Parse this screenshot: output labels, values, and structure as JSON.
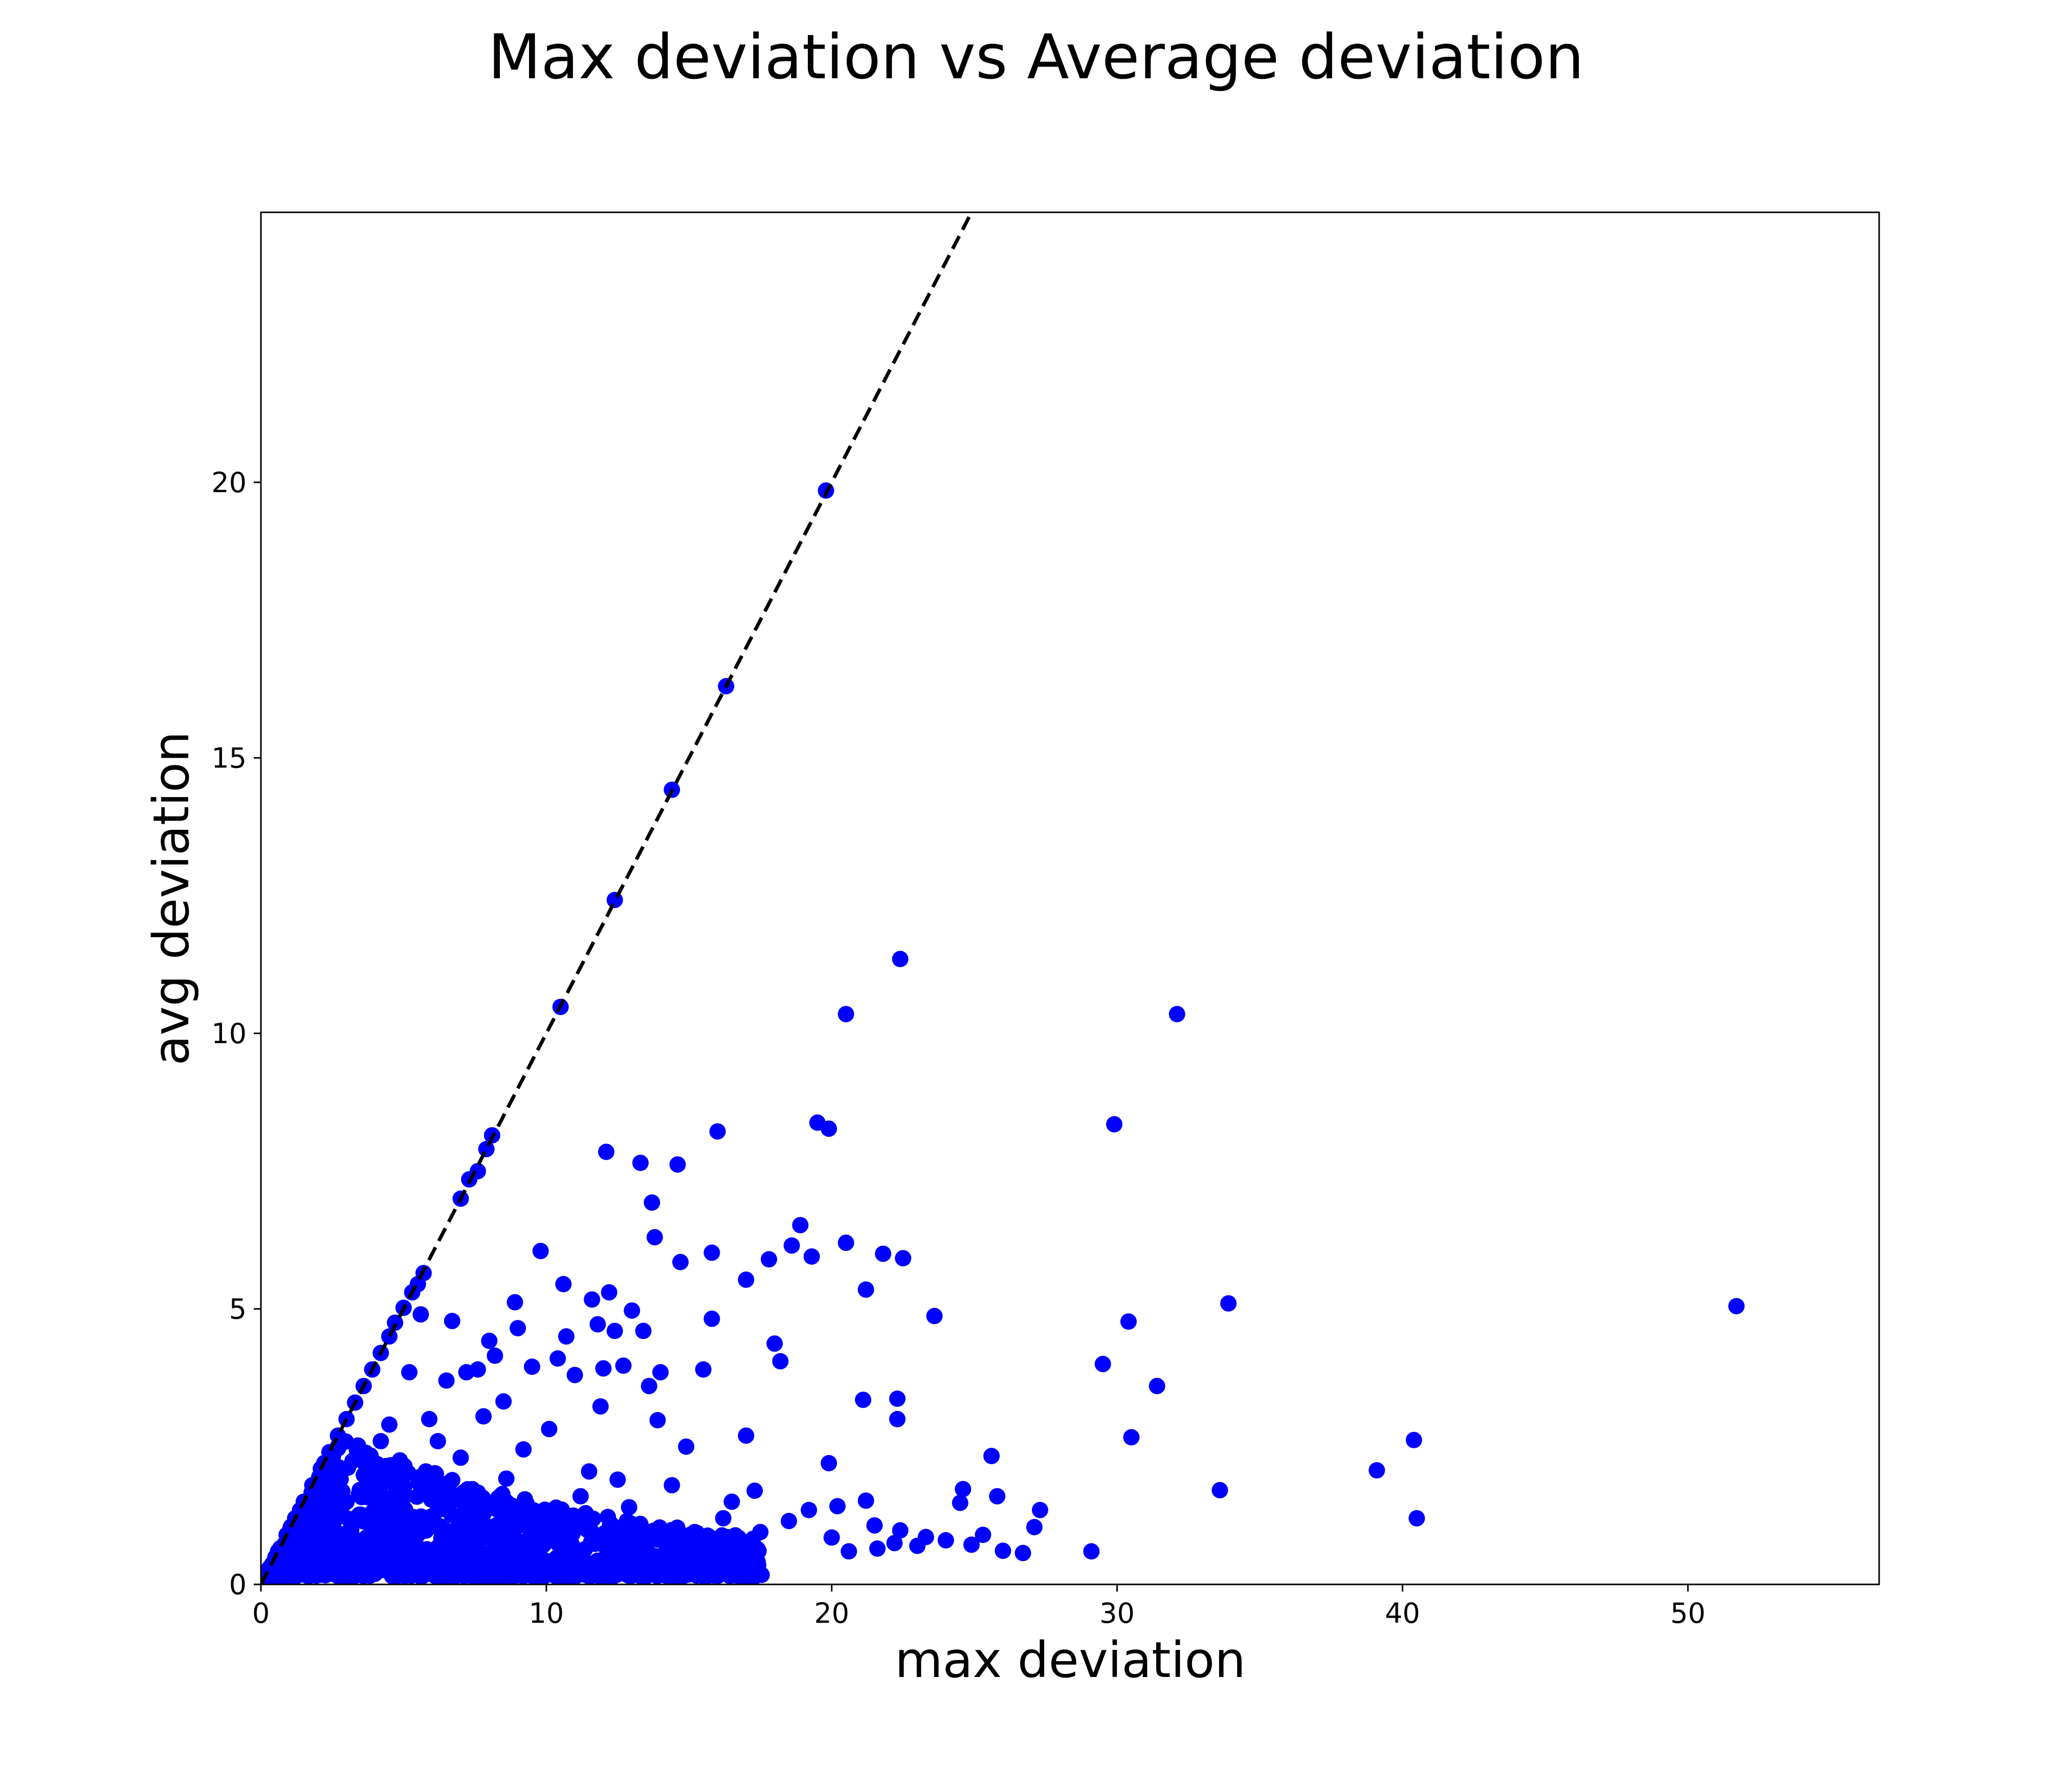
{
  "chart_data": {
    "type": "scatter",
    "title": "Max deviation vs Average deviation",
    "xlabel": "max deviation",
    "ylabel": "avg deviation",
    "xlim": [
      0,
      56.7
    ],
    "ylim": [
      0,
      24.9
    ],
    "xticks": [
      0,
      10,
      20,
      30,
      40,
      50
    ],
    "yticks": [
      0,
      5,
      10,
      15,
      20
    ],
    "grid": false,
    "marker_color": "#0000ff",
    "reference_line": {
      "style": "dashed",
      "color": "#000000",
      "slope": 1.0,
      "intercept": 0,
      "description": "y = x"
    },
    "series": [
      {
        "name": "samples",
        "points": [
          [
            51.7,
            5.05
          ],
          [
            40.5,
            1.2
          ],
          [
            40.4,
            2.62
          ],
          [
            39.1,
            2.07
          ],
          [
            33.9,
            5.1
          ],
          [
            33.6,
            1.71
          ],
          [
            32.1,
            10.35
          ],
          [
            31.4,
            3.6
          ],
          [
            30.5,
            2.67
          ],
          [
            30.4,
            4.77
          ],
          [
            29.9,
            8.35
          ],
          [
            29.5,
            4.0
          ],
          [
            29.1,
            0.6
          ],
          [
            27.3,
            1.35
          ],
          [
            27.1,
            1.04
          ],
          [
            26.7,
            0.57
          ],
          [
            26.0,
            0.61
          ],
          [
            25.8,
            1.6
          ],
          [
            25.6,
            2.33
          ],
          [
            25.3,
            0.9
          ],
          [
            24.9,
            0.72
          ],
          [
            24.6,
            1.73
          ],
          [
            24.5,
            1.48
          ],
          [
            24.0,
            0.8
          ],
          [
            23.6,
            4.87
          ],
          [
            23.3,
            0.86
          ],
          [
            23.0,
            0.7
          ],
          [
            22.5,
            5.92
          ],
          [
            22.4,
            0.98
          ],
          [
            22.4,
            11.35
          ],
          [
            22.3,
            3.0
          ],
          [
            22.3,
            3.37
          ],
          [
            22.2,
            0.75
          ],
          [
            21.8,
            6.0
          ],
          [
            21.6,
            0.65
          ],
          [
            21.5,
            1.07
          ],
          [
            21.2,
            5.35
          ],
          [
            21.2,
            1.52
          ],
          [
            21.1,
            3.35
          ],
          [
            20.6,
            0.6
          ],
          [
            20.5,
            10.35
          ],
          [
            20.5,
            6.2
          ],
          [
            20.2,
            1.42
          ],
          [
            20.0,
            0.85
          ],
          [
            19.9,
            8.27
          ],
          [
            19.9,
            2.2
          ],
          [
            19.5,
            8.38
          ],
          [
            19.3,
            5.95
          ],
          [
            19.2,
            1.35
          ],
          [
            18.9,
            6.52
          ],
          [
            18.5,
            1.15
          ],
          [
            18.6,
            6.15
          ],
          [
            18.2,
            4.05
          ],
          [
            18.0,
            4.37
          ],
          [
            17.8,
            5.9
          ],
          [
            17.5,
            0.95
          ],
          [
            17.3,
            1.7
          ],
          [
            17.0,
            2.7
          ],
          [
            17.0,
            5.53
          ],
          [
            16.5,
            1.5
          ],
          [
            16.2,
            1.2
          ],
          [
            16.0,
            8.22
          ],
          [
            15.8,
            4.82
          ],
          [
            15.8,
            6.02
          ],
          [
            15.5,
            3.9
          ],
          [
            15.2,
            0.95
          ],
          [
            14.9,
            2.5
          ],
          [
            14.7,
            5.85
          ],
          [
            14.6,
            7.62
          ],
          [
            14.4,
            1.8
          ],
          [
            14.0,
            3.85
          ],
          [
            13.9,
            2.98
          ],
          [
            13.7,
            6.93
          ],
          [
            13.8,
            6.3
          ],
          [
            13.6,
            3.6
          ],
          [
            13.4,
            4.6
          ],
          [
            13.3,
            7.65
          ],
          [
            13.0,
            4.97
          ],
          [
            12.9,
            1.4
          ],
          [
            12.7,
            3.97
          ],
          [
            12.5,
            1.9
          ],
          [
            12.4,
            4.6
          ],
          [
            12.2,
            5.3
          ],
          [
            12.1,
            7.85
          ],
          [
            12.0,
            3.92
          ],
          [
            11.9,
            3.23
          ],
          [
            11.8,
            4.72
          ],
          [
            11.6,
            5.17
          ],
          [
            11.5,
            2.05
          ],
          [
            11.2,
            1.6
          ],
          [
            11.0,
            3.8
          ],
          [
            10.6,
            5.45
          ],
          [
            10.7,
            4.5
          ],
          [
            10.4,
            4.1
          ],
          [
            10.1,
            2.82
          ],
          [
            9.8,
            6.05
          ],
          [
            9.5,
            3.95
          ],
          [
            9.2,
            2.45
          ],
          [
            9.0,
            4.65
          ],
          [
            8.9,
            5.12
          ],
          [
            8.6,
            1.92
          ],
          [
            8.5,
            3.32
          ],
          [
            8.2,
            4.15
          ],
          [
            8.0,
            4.42
          ],
          [
            7.8,
            3.05
          ],
          [
            7.6,
            3.9
          ],
          [
            7.2,
            3.85
          ],
          [
            7.0,
            2.3
          ],
          [
            6.7,
            4.78
          ],
          [
            6.5,
            3.7
          ],
          [
            6.2,
            2.6
          ],
          [
            5.9,
            3.0
          ],
          [
            5.6,
            4.9
          ],
          [
            5.2,
            3.85
          ],
          [
            4.8,
            2.1
          ],
          [
            4.5,
            2.9
          ],
          [
            4.2,
            2.6
          ],
          [
            3.8,
            2.1
          ],
          [
            3.5,
            1.7
          ],
          [
            3.0,
            1.5
          ],
          [
            2.5,
            1.2
          ],
          [
            2.0,
            0.9
          ],
          [
            1.5,
            0.7
          ],
          [
            1.0,
            0.45
          ],
          [
            0.5,
            0.25
          ],
          [
            0.2,
            0.1
          ],
          [
            19.8,
            19.85
          ],
          [
            16.3,
            16.3
          ],
          [
            14.4,
            14.42
          ],
          [
            12.4,
            12.42
          ],
          [
            10.5,
            10.48
          ],
          [
            8.1,
            8.15
          ],
          [
            7.9,
            7.9
          ],
          [
            7.6,
            7.5
          ],
          [
            7.3,
            7.35
          ],
          [
            7.0,
            7.0
          ],
          [
            5.7,
            5.65
          ],
          [
            5.5,
            5.45
          ],
          [
            5.3,
            5.3
          ],
          [
            5.0,
            5.02
          ],
          [
            4.7,
            4.75
          ],
          [
            4.5,
            4.5
          ],
          [
            4.2,
            4.2
          ],
          [
            3.9,
            3.9
          ],
          [
            3.6,
            3.6
          ],
          [
            3.3,
            3.3
          ],
          [
            3.0,
            3.0
          ],
          [
            2.7,
            2.7
          ],
          [
            2.4,
            2.4
          ],
          [
            2.1,
            2.1
          ],
          [
            1.8,
            1.8
          ],
          [
            1.5,
            1.5
          ],
          [
            1.2,
            1.2
          ],
          [
            0.9,
            0.9
          ],
          [
            0.6,
            0.6
          ],
          [
            0.3,
            0.3
          ]
        ]
      }
    ]
  }
}
